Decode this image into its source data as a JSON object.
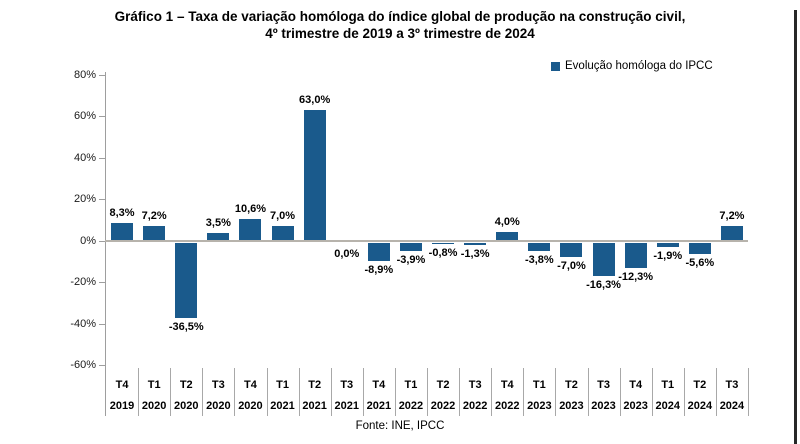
{
  "title": {
    "line1": "Gráfico 1 – Taxa de variação homóloga do índice global de produção na construção civil,",
    "line2": "4º trimestre de 2019 a 3º trimestre de 2024"
  },
  "legend": {
    "label": "Evolução homóloga do IPCC",
    "color": "#1a5a8c"
  },
  "source": "Fonte: INE, IPCC",
  "chart_data": {
    "type": "bar",
    "title": "Gráfico 1 – Taxa de variação homóloga do índice global de produção na construção civil, 4º trimestre de 2019 a 3º trimestre de 2024",
    "legend": "Evolução homóloga do IPCC",
    "legend_position": "top-right",
    "grid": false,
    "xlabel": "",
    "ylabel": "",
    "ylim": [
      -60,
      80
    ],
    "yticks": [
      80,
      60,
      40,
      20,
      0,
      -20,
      -40,
      -60
    ],
    "ytick_labels": [
      "80%",
      "60%",
      "40%",
      "20%",
      "0%",
      "-20%",
      "-40%",
      "-60%"
    ],
    "bar_color": "#1a5a8c",
    "categories": [
      {
        "quarter": "T4",
        "year": "2019"
      },
      {
        "quarter": "T1",
        "year": "2020"
      },
      {
        "quarter": "T2",
        "year": "2020"
      },
      {
        "quarter": "T3",
        "year": "2020"
      },
      {
        "quarter": "T4",
        "year": "2020"
      },
      {
        "quarter": "T1",
        "year": "2021"
      },
      {
        "quarter": "T2",
        "year": "2021"
      },
      {
        "quarter": "T3",
        "year": "2021"
      },
      {
        "quarter": "T4",
        "year": "2021"
      },
      {
        "quarter": "T1",
        "year": "2022"
      },
      {
        "quarter": "T2",
        "year": "2022"
      },
      {
        "quarter": "T3",
        "year": "2022"
      },
      {
        "quarter": "T4",
        "year": "2022"
      },
      {
        "quarter": "T1",
        "year": "2023"
      },
      {
        "quarter": "T2",
        "year": "2023"
      },
      {
        "quarter": "T3",
        "year": "2023"
      },
      {
        "quarter": "T4",
        "year": "2023"
      },
      {
        "quarter": "T1",
        "year": "2024"
      },
      {
        "quarter": "T2",
        "year": "2024"
      },
      {
        "quarter": "T3",
        "year": "2024"
      }
    ],
    "values": [
      8.3,
      7.2,
      -36.5,
      3.5,
      10.6,
      7.0,
      63.0,
      0.0,
      -8.9,
      -3.9,
      -0.8,
      -1.3,
      4.0,
      -3.8,
      -7.0,
      -16.3,
      -12.3,
      -1.9,
      -5.6,
      7.2
    ],
    "labels": [
      "8,3%",
      "7,2%",
      "-36,5%",
      "3,5%",
      "10,6%",
      "7,0%",
      "63,0%",
      "0,0%",
      "-8,9%",
      "-3,9%",
      "-0,8%",
      "-1,3%",
      "4,0%",
      "-3,8%",
      "-7,0%",
      "-16,3%",
      "-12,3%",
      "-1,9%",
      "-5,6%",
      "7,2%"
    ]
  }
}
